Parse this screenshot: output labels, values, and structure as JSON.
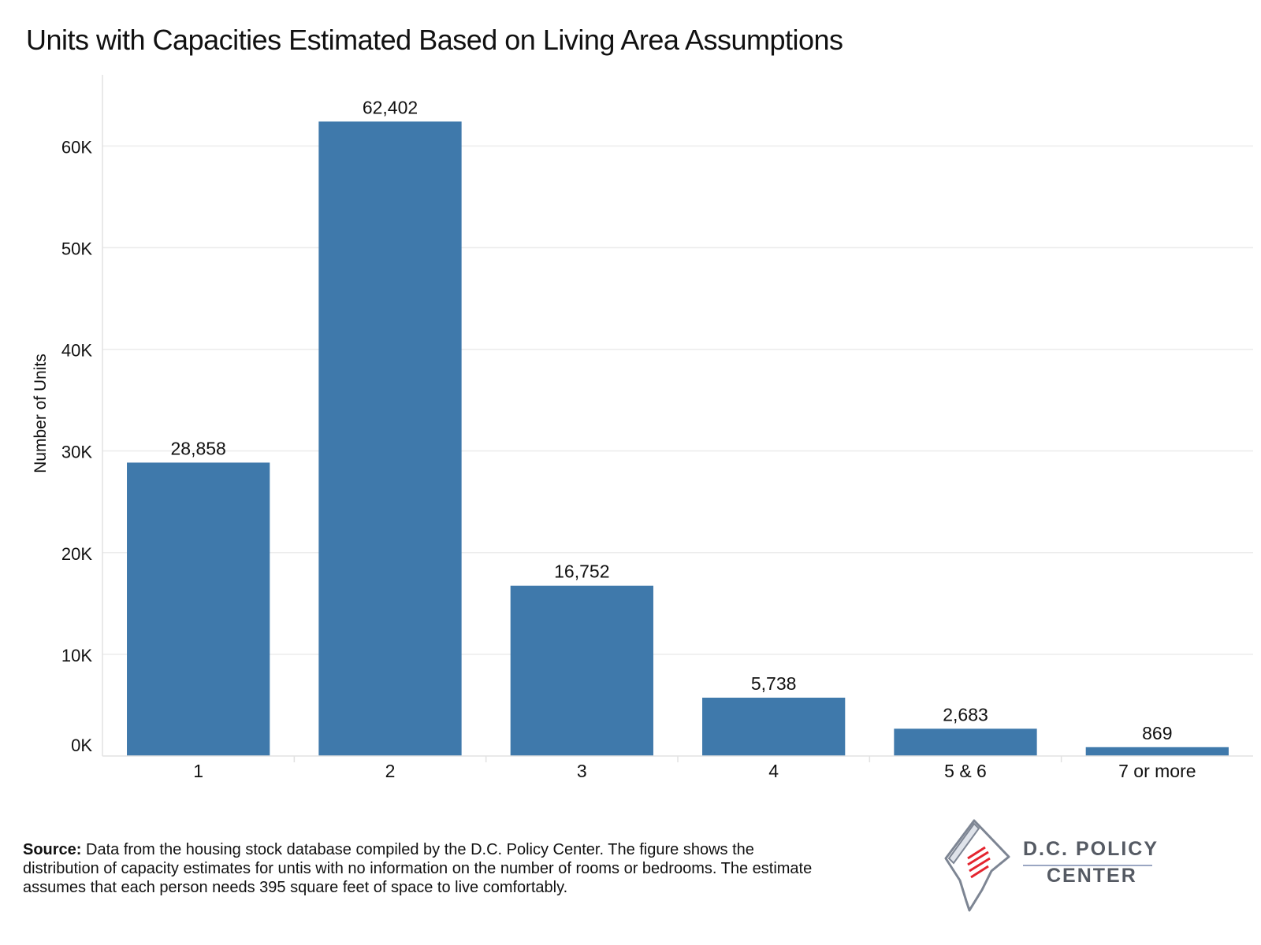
{
  "chart_data": {
    "type": "bar",
    "title": "Units with Capacities Estimated Based on Living Area Assumptions",
    "xlabel": "",
    "ylabel": "Number of Units",
    "categories": [
      "1",
      "2",
      "3",
      "4",
      "5 & 6",
      "7 or more"
    ],
    "values": [
      28858,
      62402,
      16752,
      5738,
      2683,
      869
    ],
    "value_labels": [
      "28,858",
      "62,402",
      "16,752",
      "5,738",
      "2,683",
      "869"
    ],
    "ylim": [
      0,
      67000
    ],
    "yticks": [
      0,
      10000,
      20000,
      30000,
      40000,
      50000,
      60000
    ],
    "ytick_labels": [
      "0K",
      "10K",
      "20K",
      "30K",
      "40K",
      "50K",
      "60K"
    ],
    "grid": true,
    "legend": "none",
    "bar_color": "#3f79ab"
  },
  "footer": {
    "source_label": "Source:",
    "source_text": " Data from the housing stock database compiled by the D.C. Policy Center. The figure shows the distribution of capacity estimates for untis with no information on the number of rooms or bedrooms. The estimate assumes that each person needs 395 square feet of space to live comfortably."
  },
  "logo": {
    "line1": "D.C. POLICY",
    "line2": "CENTER",
    "accent_color": "#e4252f",
    "text_color": "#555a63"
  }
}
